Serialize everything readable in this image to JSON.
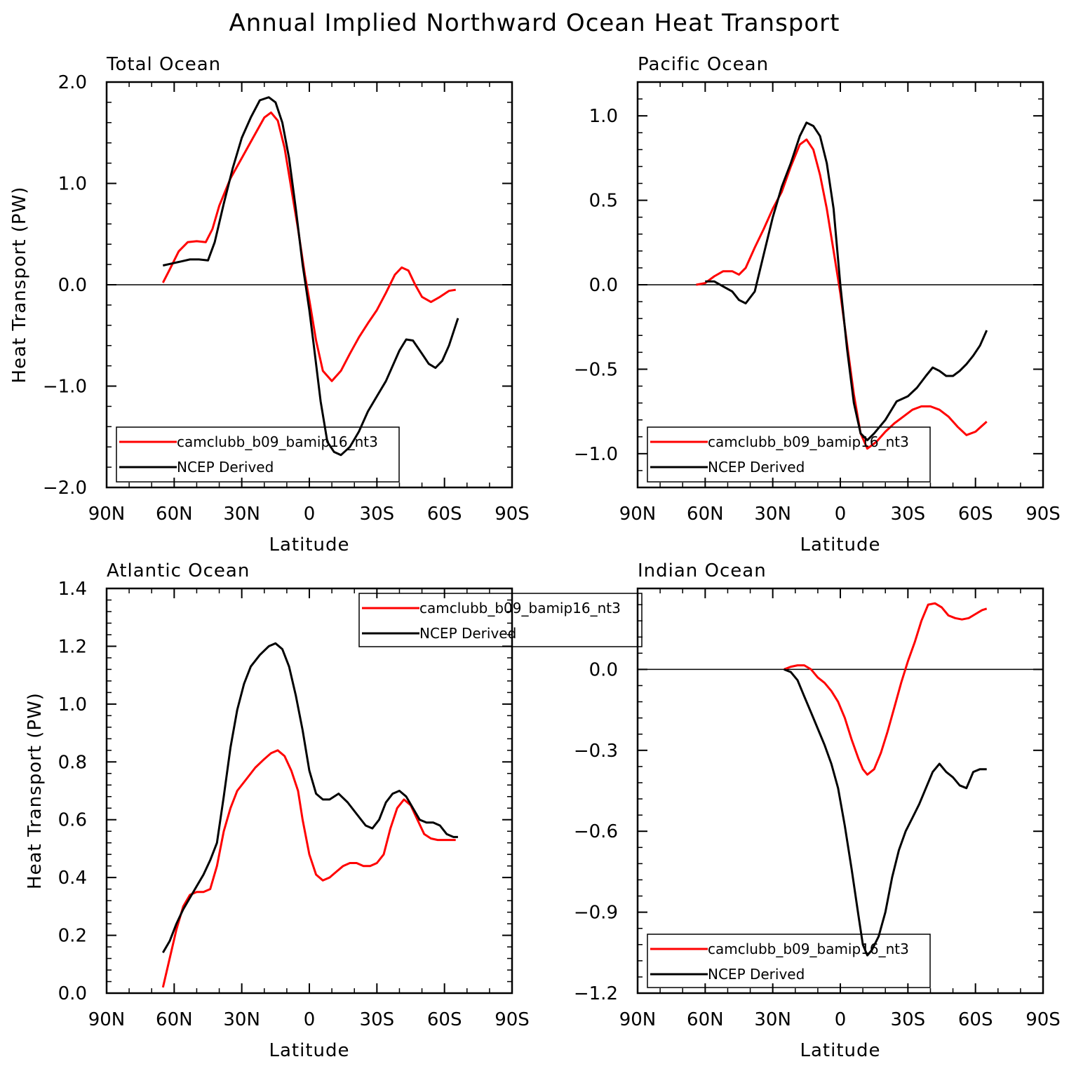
{
  "figure_title": "Annual Implied Northward Ocean Heat Transport",
  "colors": {
    "model": "#ff0000",
    "obs": "#000000",
    "axis": "#000000"
  },
  "chart_data": [
    {
      "type": "line",
      "title": "Total Ocean",
      "xlabel": "Latitude",
      "ylabel": "Heat Transport (PW)",
      "xlim": [
        90,
        -90
      ],
      "ylim": [
        -2.0,
        2.0
      ],
      "xticks": [
        90,
        60,
        30,
        0,
        -30,
        -60,
        -90
      ],
      "xtick_labels": [
        "90N",
        "60N",
        "30N",
        "0",
        "30S",
        "60S",
        "90S"
      ],
      "yticks": [
        -2.0,
        -1.0,
        0.0,
        1.0,
        2.0
      ],
      "ytick_labels": [
        "−2.0",
        "−1.0",
        "0.0",
        "1.0",
        "2.0"
      ],
      "zero_line": true,
      "legend": {
        "placement": "bottom-left",
        "entries": [
          "camclubb_b09_bamip16_nt3",
          "NCEP Derived"
        ]
      },
      "series": [
        {
          "name": "camclubb_b09_bamip16_nt3",
          "color": "#ff0000",
          "x": [
            65,
            62,
            58,
            54,
            50,
            46,
            43,
            40,
            35,
            30,
            25,
            20,
            17,
            14,
            11,
            8,
            5,
            2,
            0,
            -3,
            -6,
            -10,
            -14,
            -18,
            -22,
            -26,
            -30,
            -34,
            -38,
            -41,
            -44,
            -47,
            -50,
            -54,
            -58,
            -62,
            -65
          ],
          "y": [
            0.02,
            0.15,
            0.33,
            0.42,
            0.43,
            0.42,
            0.55,
            0.78,
            1.05,
            1.25,
            1.45,
            1.65,
            1.7,
            1.62,
            1.35,
            0.95,
            0.55,
            0.1,
            -0.15,
            -0.55,
            -0.85,
            -0.95,
            -0.85,
            -0.68,
            -0.52,
            -0.38,
            -0.25,
            -0.08,
            0.1,
            0.17,
            0.14,
            0.0,
            -0.12,
            -0.17,
            -0.12,
            -0.06,
            -0.05
          ]
        },
        {
          "name": "NCEP Derived",
          "color": "#000000",
          "x": [
            65,
            61,
            57,
            53,
            49,
            45,
            42,
            38,
            34,
            30,
            26,
            22,
            18,
            15,
            12,
            9,
            6,
            3,
            0,
            -2,
            -5,
            -8,
            -11,
            -14,
            -18,
            -22,
            -26,
            -30,
            -34,
            -37,
            -40,
            -43,
            -46,
            -50,
            -53,
            -56,
            -59,
            -62,
            -66
          ],
          "y": [
            0.19,
            0.21,
            0.23,
            0.25,
            0.25,
            0.24,
            0.42,
            0.8,
            1.15,
            1.45,
            1.65,
            1.82,
            1.85,
            1.8,
            1.6,
            1.25,
            0.75,
            0.2,
            -0.25,
            -0.6,
            -1.15,
            -1.55,
            -1.65,
            -1.68,
            -1.6,
            -1.45,
            -1.25,
            -1.1,
            -0.95,
            -0.8,
            -0.65,
            -0.54,
            -0.55,
            -0.68,
            -0.78,
            -0.82,
            -0.75,
            -0.6,
            -0.33
          ]
        }
      ]
    },
    {
      "type": "line",
      "title": "Pacific Ocean",
      "xlabel": "Latitude",
      "ylabel": "",
      "xlim": [
        90,
        -90
      ],
      "ylim": [
        -1.2,
        1.2
      ],
      "xticks": [
        90,
        60,
        30,
        0,
        -30,
        -60,
        -90
      ],
      "xtick_labels": [
        "90N",
        "60N",
        "30N",
        "0",
        "30S",
        "60S",
        "90S"
      ],
      "yticks": [
        -1.0,
        -0.5,
        0.0,
        0.5,
        1.0
      ],
      "ytick_labels": [
        "−1.0",
        "−0.5",
        "0.0",
        "0.5",
        "1.0"
      ],
      "zero_line": true,
      "legend": {
        "placement": "bottom-left",
        "entries": [
          "camclubb_b09_bamip16_nt3",
          "NCEP Derived"
        ]
      },
      "series": [
        {
          "name": "camclubb_b09_bamip16_nt3",
          "color": "#ff0000",
          "x": [
            64,
            60,
            56,
            52,
            48,
            45,
            42,
            38,
            34,
            30,
            26,
            22,
            18,
            15,
            12,
            9,
            6,
            3,
            0,
            -3,
            -6,
            -9,
            -12,
            -16,
            -20,
            -24,
            -28,
            -32,
            -36,
            -40,
            -44,
            -48,
            -52,
            -56,
            -60,
            -65
          ],
          "y": [
            0.0,
            0.01,
            0.05,
            0.08,
            0.08,
            0.06,
            0.1,
            0.22,
            0.33,
            0.45,
            0.55,
            0.7,
            0.83,
            0.86,
            0.8,
            0.65,
            0.45,
            0.2,
            -0.05,
            -0.35,
            -0.65,
            -0.88,
            -0.97,
            -0.93,
            -0.87,
            -0.82,
            -0.78,
            -0.74,
            -0.72,
            -0.72,
            -0.74,
            -0.78,
            -0.84,
            -0.89,
            -0.87,
            -0.81
          ]
        },
        {
          "name": "NCEP Derived",
          "color": "#000000",
          "x": [
            60,
            56,
            52,
            48,
            45,
            42,
            38,
            34,
            30,
            26,
            22,
            18,
            15,
            12,
            9,
            6,
            3,
            0,
            -3,
            -6,
            -9,
            -12,
            -15,
            -20,
            -25,
            -30,
            -34,
            -38,
            -41,
            -44,
            -47,
            -50,
            -53,
            -56,
            -59,
            -62,
            -65
          ],
          "y": [
            0.02,
            0.02,
            -0.01,
            -0.04,
            -0.09,
            -0.11,
            -0.04,
            0.18,
            0.4,
            0.58,
            0.72,
            0.88,
            0.96,
            0.94,
            0.88,
            0.72,
            0.45,
            0.0,
            -0.38,
            -0.7,
            -0.88,
            -0.92,
            -0.88,
            -0.8,
            -0.69,
            -0.66,
            -0.61,
            -0.54,
            -0.49,
            -0.51,
            -0.54,
            -0.54,
            -0.51,
            -0.47,
            -0.42,
            -0.36,
            -0.27
          ]
        }
      ]
    },
    {
      "type": "line",
      "title": "Atlantic Ocean",
      "xlabel": "Latitude",
      "ylabel": "Heat Transport (PW)",
      "xlim": [
        90,
        -90
      ],
      "ylim": [
        0.0,
        1.4
      ],
      "xticks": [
        90,
        60,
        30,
        0,
        -30,
        -60,
        -90
      ],
      "xtick_labels": [
        "90N",
        "60N",
        "30N",
        "0",
        "30S",
        "60S",
        "90S"
      ],
      "yticks": [
        0.0,
        0.2,
        0.4,
        0.6,
        0.8,
        1.0,
        1.2,
        1.4
      ],
      "ytick_labels": [
        "0.0",
        "0.2",
        "0.4",
        "0.6",
        "0.8",
        "1.0",
        "1.2",
        "1.4"
      ],
      "zero_line": false,
      "legend": {
        "placement": "top-right",
        "entries": [
          "camclubb_b09_bamip16_nt3",
          "NCEP Derived"
        ]
      },
      "series": [
        {
          "name": "camclubb_b09_bamip16_nt3",
          "color": "#ff0000",
          "x": [
            65,
            62,
            59,
            56,
            53,
            50,
            47,
            44,
            41,
            38,
            35,
            32,
            28,
            24,
            20,
            17,
            14,
            11,
            8,
            5,
            3,
            0,
            -3,
            -6,
            -9,
            -12,
            -15,
            -18,
            -21,
            -24,
            -27,
            -30,
            -33,
            -36,
            -39,
            -42,
            -45,
            -48,
            -51,
            -54,
            -57,
            -60,
            -65
          ],
          "y": [
            0.02,
            0.12,
            0.22,
            0.3,
            0.34,
            0.35,
            0.35,
            0.36,
            0.44,
            0.56,
            0.64,
            0.7,
            0.74,
            0.78,
            0.81,
            0.83,
            0.84,
            0.82,
            0.77,
            0.7,
            0.6,
            0.48,
            0.41,
            0.39,
            0.4,
            0.42,
            0.44,
            0.45,
            0.45,
            0.44,
            0.44,
            0.45,
            0.48,
            0.57,
            0.64,
            0.67,
            0.65,
            0.6,
            0.55,
            0.535,
            0.53,
            0.53,
            0.53
          ]
        },
        {
          "name": "NCEP Derived",
          "color": "#000000",
          "x": [
            65,
            62,
            59,
            56,
            53,
            50,
            47,
            44,
            41,
            38,
            35,
            32,
            29,
            26,
            22,
            18,
            15,
            12,
            9,
            6,
            3,
            0,
            -3,
            -6,
            -9,
            -13,
            -17,
            -21,
            -25,
            -28,
            -31,
            -34,
            -37,
            -40,
            -43,
            -46,
            -49,
            -52,
            -55,
            -58,
            -61,
            -64,
            -66
          ],
          "y": [
            0.14,
            0.18,
            0.24,
            0.29,
            0.33,
            0.37,
            0.41,
            0.46,
            0.52,
            0.68,
            0.85,
            0.98,
            1.07,
            1.13,
            1.17,
            1.2,
            1.21,
            1.19,
            1.13,
            1.03,
            0.91,
            0.77,
            0.69,
            0.67,
            0.67,
            0.69,
            0.66,
            0.62,
            0.58,
            0.57,
            0.6,
            0.66,
            0.69,
            0.7,
            0.68,
            0.64,
            0.6,
            0.59,
            0.59,
            0.58,
            0.55,
            0.54,
            0.54
          ]
        }
      ]
    },
    {
      "type": "line",
      "title": "Indian Ocean",
      "xlabel": "Latitude",
      "ylabel": "",
      "xlim": [
        90,
        -90
      ],
      "ylim": [
        -1.2,
        0.3
      ],
      "xticks": [
        90,
        60,
        30,
        0,
        -30,
        -60,
        -90
      ],
      "xtick_labels": [
        "90N",
        "60N",
        "30N",
        "0",
        "30S",
        "60S",
        "90S"
      ],
      "yticks": [
        -1.2,
        -0.9,
        -0.6,
        -0.3,
        0.0
      ],
      "ytick_labels": [
        "−1.2",
        "−0.9",
        "−0.6",
        "−0.3",
        "0.0"
      ],
      "zero_line": true,
      "legend": {
        "placement": "bottom-left",
        "entries": [
          "camclubb_b09_bamip16_nt3",
          "NCEP Derived"
        ]
      },
      "series": [
        {
          "name": "camclubb_b09_bamip16_nt3",
          "color": "#ff0000",
          "x": [
            25,
            22,
            19,
            16,
            13,
            10,
            7,
            4,
            1,
            -2,
            -5,
            -8,
            -10,
            -12,
            -15,
            -18,
            -21,
            -24,
            -27,
            -30,
            -33,
            -36,
            -39,
            -42,
            -45,
            -48,
            -51,
            -54,
            -57,
            -60,
            -63,
            -65
          ],
          "y": [
            0.0,
            0.01,
            0.015,
            0.015,
            0.0,
            -0.03,
            -0.05,
            -0.08,
            -0.12,
            -0.18,
            -0.26,
            -0.33,
            -0.37,
            -0.39,
            -0.37,
            -0.31,
            -0.23,
            -0.14,
            -0.05,
            0.03,
            0.1,
            0.18,
            0.24,
            0.245,
            0.23,
            0.2,
            0.19,
            0.185,
            0.19,
            0.205,
            0.22,
            0.225
          ]
        },
        {
          "name": "NCEP Derived",
          "color": "#000000",
          "x": [
            25,
            22,
            19,
            16,
            13,
            10,
            7,
            4,
            1,
            -2,
            -5,
            -8,
            -10,
            -12,
            -14,
            -17,
            -20,
            -23,
            -26,
            -29,
            -32,
            -35,
            -38,
            -41,
            -44,
            -47,
            -50,
            -53,
            -56,
            -59,
            -62,
            -65
          ],
          "y": [
            0.0,
            -0.01,
            -0.04,
            -0.1,
            -0.16,
            -0.22,
            -0.28,
            -0.35,
            -0.44,
            -0.58,
            -0.74,
            -0.91,
            -1.02,
            -1.06,
            -1.04,
            -0.99,
            -0.9,
            -0.77,
            -0.67,
            -0.6,
            -0.55,
            -0.5,
            -0.44,
            -0.38,
            -0.35,
            -0.38,
            -0.4,
            -0.43,
            -0.44,
            -0.38,
            -0.37,
            -0.37
          ]
        }
      ]
    }
  ]
}
